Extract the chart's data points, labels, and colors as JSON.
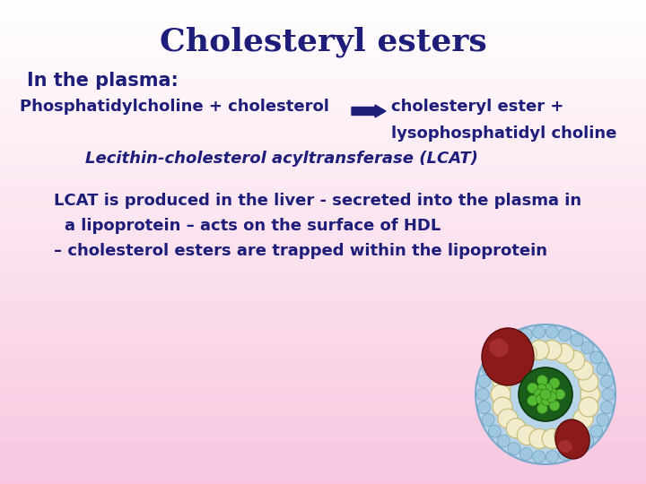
{
  "title": "Cholesteryl esters",
  "title_color": "#1e1e7a",
  "title_fontsize": 26,
  "bg_top_color": "#ffffff",
  "bg_bottom_color": "#f5c0d8",
  "text_color": "#1e1e7a",
  "line1": "In the plasma:",
  "line2a": "Phosphatidylcholine + cholesterol",
  "line2b": "cholesteryl ester +",
  "line3": "lysophosphatidyl choline",
  "line4": "Lecithin-cholesterol acyltransferase (LCAT)",
  "line5": "LCAT is produced in the liver - secreted into the plasma in",
  "line6": "a lipoprotein – acts on the surface of HDL",
  "line7": "– cholesterol esters are trapped within the lipoprotein",
  "body_fontsize": 13,
  "figwidth": 7.2,
  "figheight": 5.4,
  "dpi": 100
}
